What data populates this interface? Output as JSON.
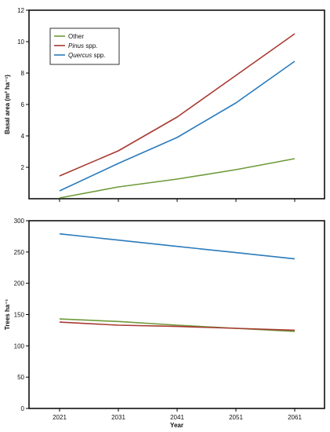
{
  "chart_data": [
    {
      "type": "line",
      "title": "",
      "xlabel": "",
      "ylabel": "Basal area (m² ha⁻¹)",
      "ylim": [
        0,
        12
      ],
      "yticks": [
        2,
        4,
        6,
        8,
        10,
        12
      ],
      "x": [
        2021,
        2031,
        2041,
        2051,
        2061
      ],
      "grid": false,
      "legend": {
        "placement": "top-left",
        "entries": [
          {
            "series": "Other",
            "prefix": "Other",
            "suffix": "",
            "italic": false
          },
          {
            "series": "Pinus spp.",
            "prefix": "Pinus",
            "suffix": " spp.",
            "italic": true
          },
          {
            "series": "Quercus spp.",
            "prefix": "Quercus",
            "suffix": " spp.",
            "italic": true
          }
        ]
      },
      "series": [
        {
          "name": "Other",
          "color": "#6e9a3a",
          "values": [
            0.05,
            0.75,
            1.25,
            1.85,
            2.55
          ]
        },
        {
          "name": "Pinus spp.",
          "color": "#a83a32",
          "values": [
            1.45,
            3.05,
            5.2,
            7.85,
            10.5
          ]
        },
        {
          "name": "Quercus spp.",
          "color": "#2a7bbd",
          "values": [
            0.5,
            2.25,
            3.9,
            6.1,
            8.75
          ]
        }
      ]
    },
    {
      "type": "line",
      "title": "",
      "xlabel": "Year",
      "ylabel": "Trees ha⁻¹",
      "ylim": [
        0,
        300
      ],
      "yticks": [
        0,
        50,
        100,
        150,
        200,
        250,
        300
      ],
      "x": [
        2021,
        2031,
        2041,
        2051,
        2061
      ],
      "xticklabels": [
        "2021",
        "2031",
        "2041",
        "2051",
        "2061"
      ],
      "grid": false,
      "series": [
        {
          "name": "Other",
          "color": "#6e9a3a",
          "values": [
            143,
            139,
            133,
            128,
            123
          ]
        },
        {
          "name": "Pinus spp.",
          "color": "#a83a32",
          "values": [
            138,
            133,
            131,
            128,
            125
          ]
        },
        {
          "name": "Quercus spp.",
          "color": "#2a7bbd",
          "values": [
            279,
            269,
            259,
            249,
            239
          ]
        }
      ]
    }
  ]
}
